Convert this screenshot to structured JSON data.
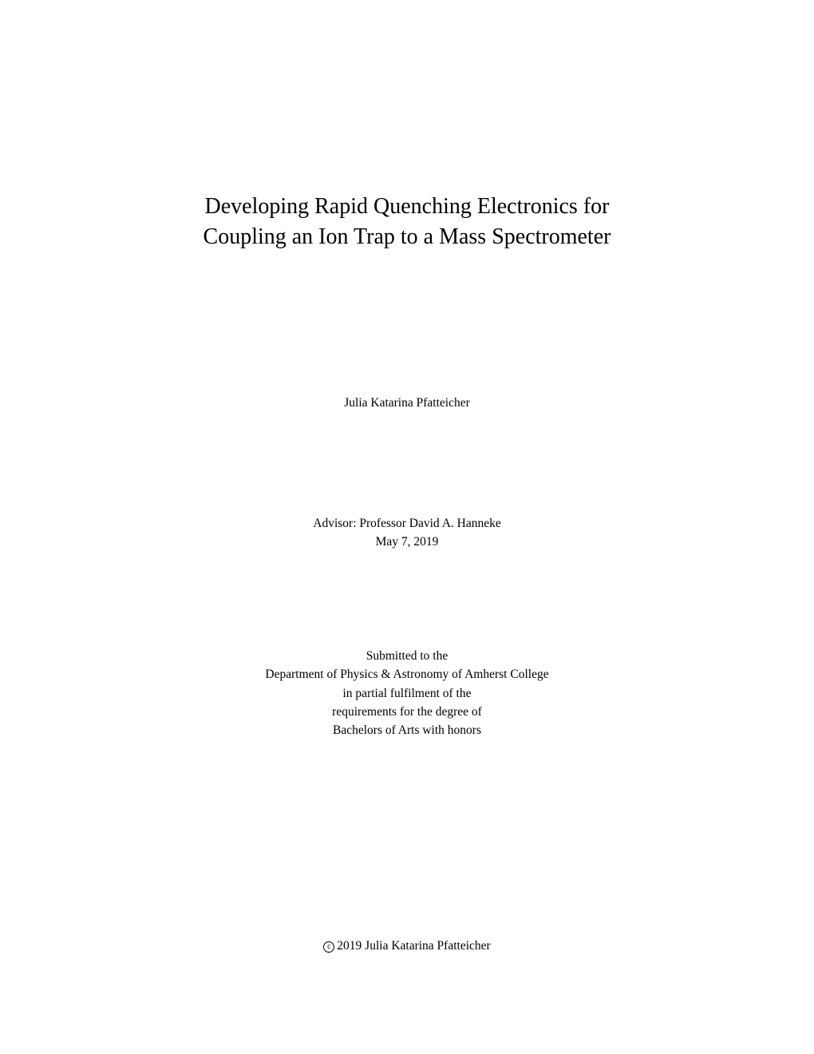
{
  "page": {
    "background_color": "#ffffff",
    "text_color": "#000000",
    "font_family": "Computer Modern, Latin Modern, Georgia, serif"
  },
  "title": {
    "line1": "Developing Rapid Quenching Electronics for",
    "line2": "Coupling an Ion Trap to a Mass Spectrometer",
    "fontsize": 28
  },
  "author": {
    "name": "Julia Katarina Pfatteicher",
    "fontsize": 15.5
  },
  "advisor": {
    "line1": "Advisor: Professor David A. Hanneke",
    "date": "May 7, 2019",
    "fontsize": 15.5
  },
  "submitted": {
    "line1": "Submitted to the",
    "line2": "Department of Physics & Astronomy of Amherst College",
    "line3": "in partial fulfilment of the",
    "line4": "requirements for the degree of",
    "line5": "Bachelors of Arts with honors",
    "fontsize": 15.5
  },
  "copyright": {
    "symbol": "c",
    "text": "2019 Julia Katarina Pfatteicher",
    "fontsize": 15.5
  }
}
